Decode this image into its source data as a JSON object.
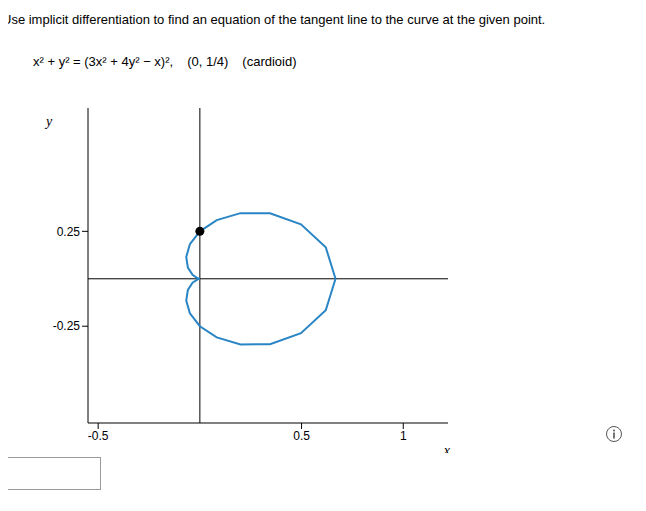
{
  "prompt": "Use implicit differentiation to find an equation of the tangent line to the curve at the given point.",
  "equation": "x² + y² = (3x² + 4y² − x)²,",
  "point_label": "(0, 1/4)",
  "curve_name": "(cardioid)",
  "chart_data": {
    "type": "line",
    "x_label": "x",
    "y_label": "y",
    "xlim": [
      -0.55,
      1.22
    ],
    "ylim": [
      -0.76,
      0.9
    ],
    "xticks": [
      -0.5,
      0.5,
      1
    ],
    "yticks": [
      -0.25,
      0.25
    ],
    "grid": false,
    "series": [
      {
        "x": [
          0.667,
          0.619,
          0.497,
          0.345,
          0.2,
          0.083,
          0,
          -0.049,
          -0.067,
          -0.059,
          -0.036,
          -0.011,
          0,
          -0.011,
          -0.036,
          -0.059,
          -0.067,
          -0.049,
          0,
          0.083,
          0.2,
          0.345,
          0.497,
          0.619,
          0.667
        ],
        "values": [
          0,
          0.166,
          0.287,
          0.345,
          0.346,
          0.309,
          0.25,
          0.182,
          0.115,
          0.059,
          0.021,
          0.003,
          0,
          -0.003,
          -0.021,
          -0.059,
          -0.115,
          -0.182,
          -0.25,
          -0.309,
          -0.346,
          -0.345,
          -0.287,
          -0.166,
          0
        ],
        "color": "#2a85c5",
        "type": "line",
        "marker": "none"
      },
      {
        "x": [
          0
        ],
        "values": [
          0.25
        ],
        "color": "#000000",
        "type": "scatter",
        "marker": "circle"
      }
    ]
  }
}
